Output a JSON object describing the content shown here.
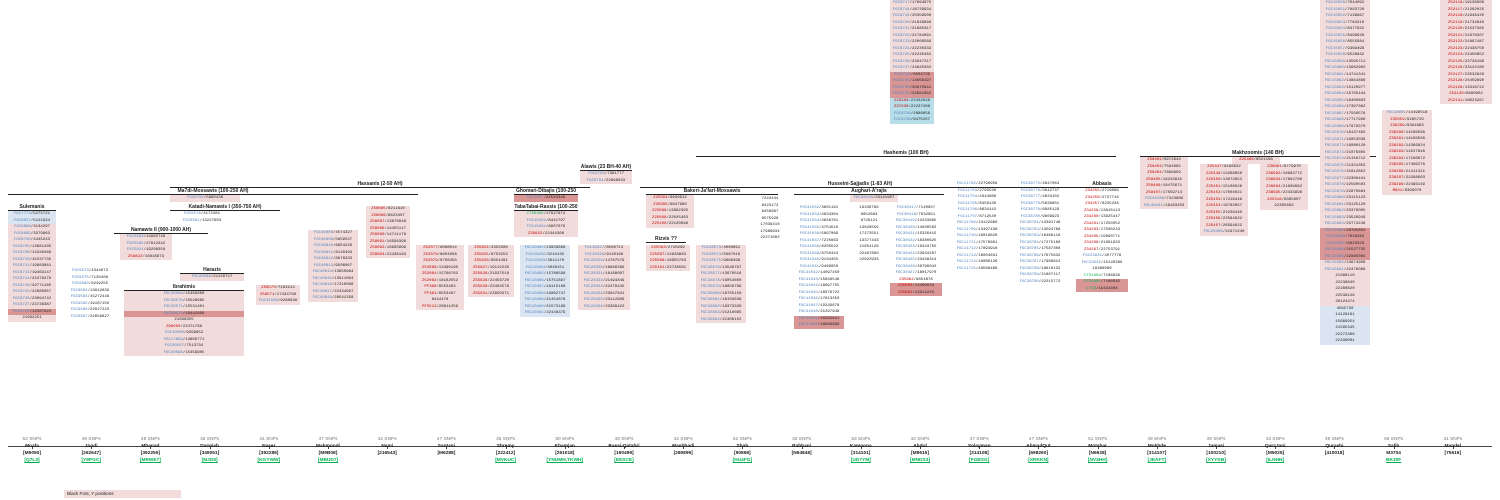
{
  "colors": {
    "pink": "#f2dcdb",
    "dark_pink": "#d99694",
    "blue_bg": "#b7dde8",
    "light_blue": "#dbe5f1",
    "grey_bg": "#d9d9d9",
    "fgc_blue": "#4f81bd",
    "z_red": "#c00000",
    "cts_green": "#00b050"
  },
  "legend": {
    "text": "Black Font, Y positions"
  },
  "headers": {
    "hashemis": "Hashemis (100 BH)",
    "makhzoomis": "Makhzoomis (140 BH)",
    "alawis": "Alawis (23 BH-40 AH)",
    "hassanis": "Hassanis (2-50 AH)",
    "husseini": "Husseini-Sajjadis (1-83 AH)",
    "mamoussawis": "Ma7di-Mossawis (100-250 AH)",
    "ghomari": "Ghomari-Dibajis (100-250",
    "tabatabai": "TabaTabai-Rassis (100-250",
    "bakeri": "Bakeri-Ja'fari-Mossawis",
    "aughari": "Aughari-A'rajis",
    "abbasis": "Abbasis",
    "katadi": "Katadi-Namawis I (350-750 AH)",
    "namawis2": "Namawis II (900-1000 AH)",
    "harazis": "Harazis",
    "ibrahimis": "Ibrahimis",
    "rizvis": "Rizvis ??",
    "sulemanis": "Sulemanis"
  },
  "blocks": {
    "top": [
      "FGC8717/17694975",
      "FGC8718/18729934",
      "FGC8719/20359500",
      "FGC8720/21848899",
      "FGC8721/21685317",
      "FGC8722/21784091",
      "FGC8723/22009569",
      "FGC8724/22230333",
      "FGC8725/22240481",
      "FGC8726/22847217",
      "FGC8727/24825302",
      "FGC8728/8504739",
      "FGC8729/14658197",
      "FGC8730/20675941",
      "FGC8731/22961962",
      "Z29309/22442946",
      "Z37030/22237409",
      "FGC8736/2888656",
      "FGC8738/9475157"
    ],
    "alawis": [
      "FGC8703/7391777",
      "FGC8704/22868033"
    ],
    "mamoussawis": [
      "FGC8702/5860436"
    ],
    "ghomari": [
      "FGC3807/22543346"
    ],
    "tabatabai": [
      "CTS8308/17927874",
      "FGC10452/8441797",
      "FGC10491/8907076",
      "Z29822/22444308"
    ],
    "bakeri": [
      "Z25094/9630912",
      "Z25095/9647980",
      "Z25096/13682395",
      "Z25099/22025483",
      "Z25100/22120098"
    ],
    "aughari": [
      "FGC30416/23141907"
    ],
    "abbasis": [
      "Z34255/2719089",
      "Z34256/2737716",
      "Z34257/8235238",
      "Z34259/13815113",
      "Z34260/13925447",
      "Z34261/17250052",
      "Z34263/17500243",
      "Z34265/19090771",
      "Z34266/21991933",
      "Z34267/22753791",
      "FGC23931/4077778",
      "FGC23932/15128389",
      "19386086",
      "CTS1004/7186939",
      "CTS1005/7186945",
      "L729/19431608"
    ],
    "makhzoomis": [
      "Z25468/8521198"
    ],
    "makh_left": [
      "Z58402/6972644",
      "Z58403/7564095",
      "Z58404/7898959",
      "Z58405/16243645",
      "Z58406/18475671",
      "Z58407/17559714",
      "FGC40180/7423986",
      "FGC40181/18183203"
    ],
    "makh_mid": [
      "Z25447/8198832",
      "Z25449/13268858",
      "Z25450/13672953",
      "Z25451/15108026",
      "Z25452/17004021",
      "Z25453/17216446",
      "Z25454/18783057",
      "Z25455/22236440",
      "Z25456/22594922",
      "Z25457/26594922",
      "FGC20466/21971240"
    ],
    "makh_right": [
      "Z36881/6779970",
      "Z36692/16982772",
      "Z36693/17892766",
      "Z36694/21809682",
      "Z36695/22433998",
      "Z25316/8365807",
      "22305683"
    ],
    "sulemanis": [
      "FGC7773/5275721",
      "FGC8057/5121934",
      "FGC8698/3134297",
      "FGC8699/3379863",
      "FGC8700/4445243",
      "FGC8705/13681435",
      "FGC8706/14328469",
      "FGC8710/15237735",
      "FGC8711/19083661",
      "FGC8713/19463147",
      "FGC8714/22478279",
      "FGC8716/22771165",
      "FGC8722/22885057",
      "FGC8726/23094742",
      "FGC8727/23738387",
      "FGC8728/14387822",
      "21962251"
    ],
    "katadi": [
      "FGC9578/4172481",
      "FGC9581/13227603"
    ],
    "namawis2": [
      "FGC5583/14965749",
      "FGC5585/17912342",
      "FGC5821/19208358",
      "Z58822/16818973"
    ],
    "col3": [
      "FGC9573/4344873",
      "FGC9575/7120408",
      "FGC9580/8249255",
      "FGC9582/13942639",
      "FGC9584/15272449",
      "FGC9585/19187150",
      "FGC9586/22027223",
      "FGC9587/22658827"
    ],
    "harazis": [
      "FGC30568/21229717"
    ],
    "ibrahimis": [
      "FGC30569/15459080",
      "FGC30570/15526665",
      "FGC30571/15531401",
      "FGC30572/19442656",
      "21898355",
      "Z96050/22471766",
      "FGC40060/9399952",
      "FGC17993/13809771",
      "FGC30567/7513734",
      "FGC30568/15459905"
    ],
    "mahmoodi": [
      "FGC40808/4574327",
      "FGC40809/5659537",
      "FGC40810/6954228",
      "FGC40811/8129493",
      "FGC40812/8978333",
      "FGC40813/9506007",
      "FGC40814/13850984",
      "FGC40815/13511804",
      "FGC40816/17210068",
      "FGC40817/22334907",
      "FGC40818/28541358"
    ],
    "hassanis": [
      "Z58085/8211810",
      "Z58086/8623407",
      "Z58087/13670046",
      "Z58088/14455117",
      "Z58090/14711178",
      "Z58091/16596396",
      "Z58092/18995899",
      "Z58093/22438183"
    ],
    "naser": [
      "Z58570/7183214",
      "Z58571/17434798",
      "FGC31580/9280936"
    ],
    "santani": [
      "Z52077/8088014",
      "Z52078/8604058",
      "Z52079/8706450",
      "Z52080/13490190",
      "Z52081/15766762",
      "Z52082/18182552",
      "PF380/9553463",
      "PF381/9553467",
      "8444478",
      "PF5513/28811259"
    ],
    "shremy": [
      "Z55824/4353309",
      "Z55825/8753253",
      "Z55826/9054491",
      "Z55827/19112220",
      "Z55828/21937518",
      "Z55829/22458720",
      "Z55830/23404578",
      "Z55831/23950371"
    ],
    "ghomari_list": [
      "FGC10481/13958669",
      "FGC10482/3244135",
      "FGC10483/3911170",
      "FGC10484/4046151",
      "FGC10485/15786596",
      "FGC10486/15751867",
      "FGC10487/19115168",
      "FGC10488/19062747",
      "FGC10489/21454678",
      "FGC10490/21573199",
      "FGC10491/22448379"
    ],
    "rassi": [
      "FGC28327/8560714",
      "FGC28328/9120196",
      "FGC28329/14787579",
      "FGC28330/16889366",
      "FGC28331/18188097",
      "FGC28332/21494849",
      "FGC28333/22479445",
      "FGC28334/23047841",
      "FGC28335/23112909",
      "FGC28336/23389422"
    ],
    "mashhadi": [
      "Z25093/2728299",
      "Z25097/14928683",
      "Z25098/16955783",
      "Z25101/22728561"
    ],
    "shah": [
      "FGC38573/4060691",
      "FGC38574/5687016",
      "FGC38575/9886498",
      "FGC38576/13546797",
      "FGC38577/13970518",
      "FGC38578/16054600",
      "FGC38579/16859786",
      "FGC38580/16755150",
      "FGC38581/18159638",
      "FGC38582/19373330",
      "FGC38583/21218095",
      "FGC38584/21309152"
    ],
    "rabbani": [
      "7224444",
      "8423172",
      "8456687",
      "9575928",
      "17039416",
      "17988934",
      "22271002"
    ],
    "kamoona": [
      "FGC41032/3801191",
      "FGC41033/4634304",
      "FGC41034/4846761",
      "FGC41035/4754510",
      "FGC41036/5867069",
      "FGC41037/7225663",
      "FGC41038/8205522",
      "FGC41039/8750344",
      "FGC41040/9134455",
      "FGC41041/9466950",
      "FGC41042/14097450",
      "FGC41043/15649548",
      "FGC41044/16697755",
      "FGC41045/16676722",
      "FGC41046/17613350",
      "FGC41047/19349678",
      "FGC41048/21297948",
      "FGC41049/18262821",
      "FGC41050/18688896"
    ],
    "abdul": [
      "19436768",
      "8052683",
      "8729121",
      "13828559",
      "17273551",
      "19377443",
      "21654126",
      "22487890",
      "22922933"
    ],
    "solayman": [
      "FGC30417/7140957",
      "FGC30418/7932851",
      "FGC30419/13433665",
      "FGC30420/14030563",
      "FGC30421/15326415",
      "FGC30422/18380625",
      "FGC30423/19343755",
      "FGC30424/22934287",
      "FGC30425/23438314",
      "FGC30426/28790042",
      "FGC30427/18017970",
      "Z35862/6854878",
      "Z35863/14409023",
      "Z35864/13814225"
    ],
    "ahmadqut": [
      "FGC11702/22796959",
      "FGC11703/2795530",
      "FGC11704/4344088",
      "FGC11705/8459130",
      "FGC11706/8634142",
      "FGC11707/8712540",
      "FGC11708/13122960",
      "FGC11709/13497436",
      "FGC11710/16019628",
      "FGC11711/17578691",
      "FGC11712/17893918",
      "FGC11713/18004631",
      "FGC11714/18080126",
      "FGC11715/18568486"
    ],
    "motahar": [
      "FGC38775/2847064",
      "FGC38776/3942747",
      "FGC38777/4933102",
      "FGC38778/5839801",
      "FGC38779/6985129",
      "FGC38780/9809923",
      "FGC38781/13391748",
      "FGC38782/13594768",
      "FGC38783/16466118",
      "FGC38784/17275160",
      "FGC38785/17587308",
      "FGC38786/17675632",
      "FGC38787/17908824",
      "FGC38788/18610132",
      "FGC38789/21807117",
      "FGC38790/22215772"
    ],
    "salih": [
      "FGC15650/7044092",
      "FGC15651/7093720",
      "FGC15652/7139867",
      "FGC15653/7764210",
      "FGC15654/8477932",
      "FGC15655/8496930",
      "FGC15656/8555984",
      "FGC15657/9369499",
      "FGC15658/9526832",
      "FGC15659/13595711",
      "FGC15660/13662902",
      "FGC15661/14741341",
      "FGC15662/14864866",
      "FGC15663/15120977",
      "FGC15664/15765444",
      "FGC15665/16400803",
      "FGC15666/17397062",
      "FGC15667/17556576",
      "FGC15668/17717998",
      "FGC15669/17979370",
      "FGC15670/18137462",
      "FGC15671/19053038",
      "FGC15672/19080120",
      "FGC15673/21075605",
      "FGC15674/21156712",
      "FGC15675/21321053",
      "FGC15676/21812852",
      "FGC15677/22308441",
      "FGC15678/22560503",
      "FGC15679/22870684",
      "FGC15680/23115123",
      "FGC15681/23125120",
      "FGC15682/23378005",
      "FGC15683/23529949",
      "FGC15684/23774248",
      "FGC15685/28795852",
      "FGC15686/7826284",
      "FGC15687/9023323",
      "FGC15688/21527735",
      "FGC15689/22865084",
      "FGC15690/13674908",
      "FGC15691/22476066",
      "21368110",
      "22238840",
      "22280820",
      "22536128",
      "26124474",
      "4565730",
      "14129161",
      "15669954",
      "21595345",
      "22272306",
      "22339001"
    ],
    "mandel": [
      "FGC16801/14199518",
      "Z35059/9295729",
      "Z36289/9364863",
      "Z36290/14199566",
      "Z36291/14199566",
      "Z36292/14366824",
      "Z36293/14527846",
      "Z36294/17186672",
      "Z36295/17406276",
      "Z36296/21411321",
      "Z36297/22298903",
      "Z36298/22496149",
      "M841/9399070"
    ],
    "brown": [
      "Z52116/19136806",
      "Z52117/21262025",
      "Z52118/21648420",
      "Z52119/21734849",
      "Z52120/21527385",
      "Z52121/21876307",
      "Z52122/21897487",
      "Z52123/22438750",
      "Z52124/22450852",
      "Z52125/22726196",
      "Z52126/23122180",
      "Z52127/23532829",
      "Z52128/24459690",
      "Z52129/13316722",
      "Z52130/6880902",
      "Z52131/18023267"
    ]
  },
  "lineages": [
    {
      "snps": "52 SNPs",
      "name": "Moafa",
      "code": "[M5050]",
      "hap": "[Q7L3]"
    },
    {
      "snps": "49 SNPs",
      "name": "Joodi",
      "code": "[262647]",
      "hap": "[Y9PGC]"
    },
    {
      "snps": "48 SNPs",
      "name": "Mhanad",
      "code": "[392255]",
      "hap": "[MRWE7]"
    },
    {
      "snps": "48 SNPs",
      "name": "Darwish",
      "code": "[349051]",
      "hap": "[MJD5]"
    },
    {
      "snps": "44 SNPs",
      "name": "Naser",
      "code": "[392289]",
      "hap": "[KGYWW]"
    },
    {
      "snps": "47 SNPs",
      "name": "Mahmoodi",
      "code": "[M9B08]",
      "hap": "[MBUD7]"
    },
    {
      "snps": "42 SNPs",
      "name": "Nami",
      "code": "[216543]",
      "hap": ""
    },
    {
      "snps": "47 SNPs",
      "name": "Santani",
      "code": "[M6288]",
      "hap": ""
    },
    {
      "snps": "46 SNPs",
      "name": "Shremy",
      "code": "[222412]",
      "hap": "[MVKUC]"
    },
    {
      "snps": "50 SNPs",
      "name": "Khamjan",
      "code": "[261018]",
      "hap": "[YNUMH,TKWH]"
    },
    {
      "snps": "48 SNPs",
      "name": "Rassi-Qatabri",
      "code": "[190499]",
      "hap": "[EESCE]"
    },
    {
      "snps": "42 SNPs",
      "name": "Mashhadi",
      "code": "[280899]",
      "hap": ""
    },
    {
      "snps": "52 SNPs",
      "name": "Shah",
      "code": "[90868]",
      "hap": "[HU4FG]"
    },
    {
      "snps": "40 SNPs",
      "name": "Rabbani",
      "code": "[N64848]",
      "hap": ""
    },
    {
      "snps": "53 SNPs",
      "name": "Kamoona",
      "code": "[314101]",
      "hap": "[UD7YM]"
    },
    {
      "snps": "42 SNPs",
      "name": "Abdul",
      "code": "[M8615]",
      "hap": "[MNDS3]"
    },
    {
      "snps": "47 SNPs",
      "name": "Solayman",
      "code": "[314108]",
      "hap": "[FGBSG]"
    },
    {
      "snps": "47 SNPs",
      "name": "AhmadQut",
      "code": "[698260]",
      "hap": "[XRKKN]"
    },
    {
      "snps": "51 SNPs",
      "name": "Motahar",
      "code": "[N6628]",
      "hap": "[NV3HH]"
    },
    {
      "snps": "49 SNPs",
      "name": "Mokhde",
      "code": "[314107]",
      "hap": "[JEAFT]"
    },
    {
      "snps": "39 SNPs",
      "name": "Jamasi",
      "code": "[100210]",
      "hap": "[XYYKB]"
    },
    {
      "snps": "43 SNPs",
      "name": "QaraJani",
      "code": "[M5025]",
      "hap": "[ILNHN]"
    },
    {
      "snps": "39 SNPs",
      "name": "Qurashi",
      "code": "[410018]",
      "hap": ""
    },
    {
      "snps": "66 SNPs",
      "name": "Salih",
      "code": "M3704",
      "hap": "BK30F"
    },
    {
      "snps": "41 SNPs",
      "name": "Mandel",
      "code": "[75516]",
      "hap": ""
    },
    {
      "snps": "30 SNPs",
      "name": "Brown",
      "code": "[155666]",
      "hap": ""
    }
  ]
}
